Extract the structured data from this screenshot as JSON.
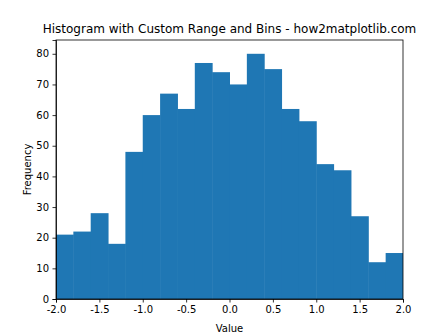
{
  "chart_data": {
    "type": "histogram",
    "title": "Histogram with Custom Range and Bins - how2matplotlib.com",
    "x_label": "Value",
    "y_label": "Frequency",
    "bins": [
      -2.0,
      -1.8,
      -1.6,
      -1.4,
      -1.2,
      -1.0,
      -0.8,
      -0.6,
      -0.4,
      -0.2,
      0.0,
      0.2,
      0.4,
      0.6,
      0.8,
      1.0,
      1.2,
      1.4,
      1.6,
      1.8,
      2.0
    ],
    "values": [
      21,
      22,
      28,
      18,
      48,
      60,
      67,
      62,
      77,
      74,
      70,
      80,
      75,
      62,
      58,
      44,
      42,
      27,
      12,
      15
    ],
    "color": "#1f77b4",
    "xlim": [
      -2.0,
      2.0
    ],
    "ylim": [
      0,
      84.5
    ],
    "xticks": [
      {
        "value": -2.0,
        "label": "-2.0"
      },
      -1.5,
      {
        "value": -1.0,
        "label": "-1.0"
      },
      -0.5,
      {
        "value": 0.0,
        "label": "0.0"
      },
      0.5,
      {
        "value": 1.0,
        "label": "1.0"
      },
      1.5,
      {
        "value": 2.0,
        "label": "2.0"
      }
    ],
    "yticks": [
      0,
      10,
      20,
      30,
      40,
      50,
      60,
      70,
      80
    ]
  }
}
